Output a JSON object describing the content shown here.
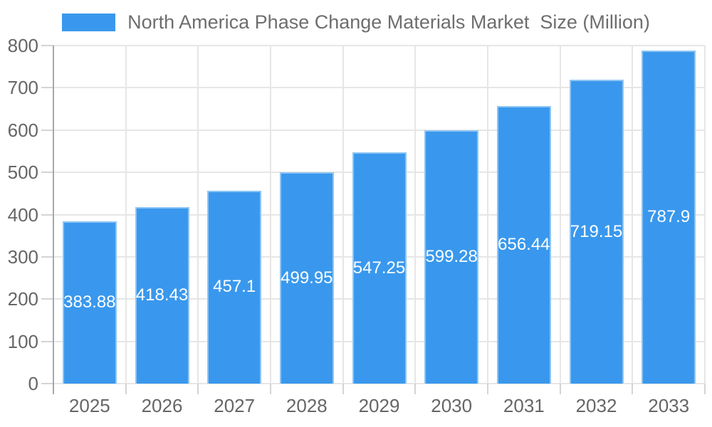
{
  "legend": {
    "position": "top",
    "items": [
      {
        "label": "North America Phase Change Materials Market  Size (Million)",
        "swatch_color": "#3998ED"
      }
    ]
  },
  "chart_data": {
    "type": "bar",
    "title": "North America Phase Change Materials Market  Size (Million)",
    "categories": [
      "2025",
      "2026",
      "2027",
      "2028",
      "2029",
      "2030",
      "2031",
      "2032",
      "2033"
    ],
    "values": [
      383.88,
      418.43,
      457.1,
      499.95,
      547.25,
      599.28,
      656.44,
      719.15,
      787.9
    ],
    "value_labels": [
      "383.88",
      "418.43",
      "457.1",
      "499.95",
      "547.25",
      "599.28",
      "656.44",
      "719.15",
      "787.9"
    ],
    "xlabel": "",
    "ylabel": "",
    "ylim": [
      0,
      800
    ],
    "yticks": [
      0,
      100,
      200,
      300,
      400,
      500,
      600,
      700,
      800
    ],
    "grid": true,
    "legend_position": "top",
    "colors": {
      "bar": "#3998ED",
      "bar_border": "#8FC5F4",
      "bar_label": "#FFFFFF",
      "grid": "#E6E6E6",
      "axis": "#A8A8A8",
      "tick": "#D4D4D4",
      "tick_label": "#666666",
      "title": "#6E6E6E"
    }
  }
}
